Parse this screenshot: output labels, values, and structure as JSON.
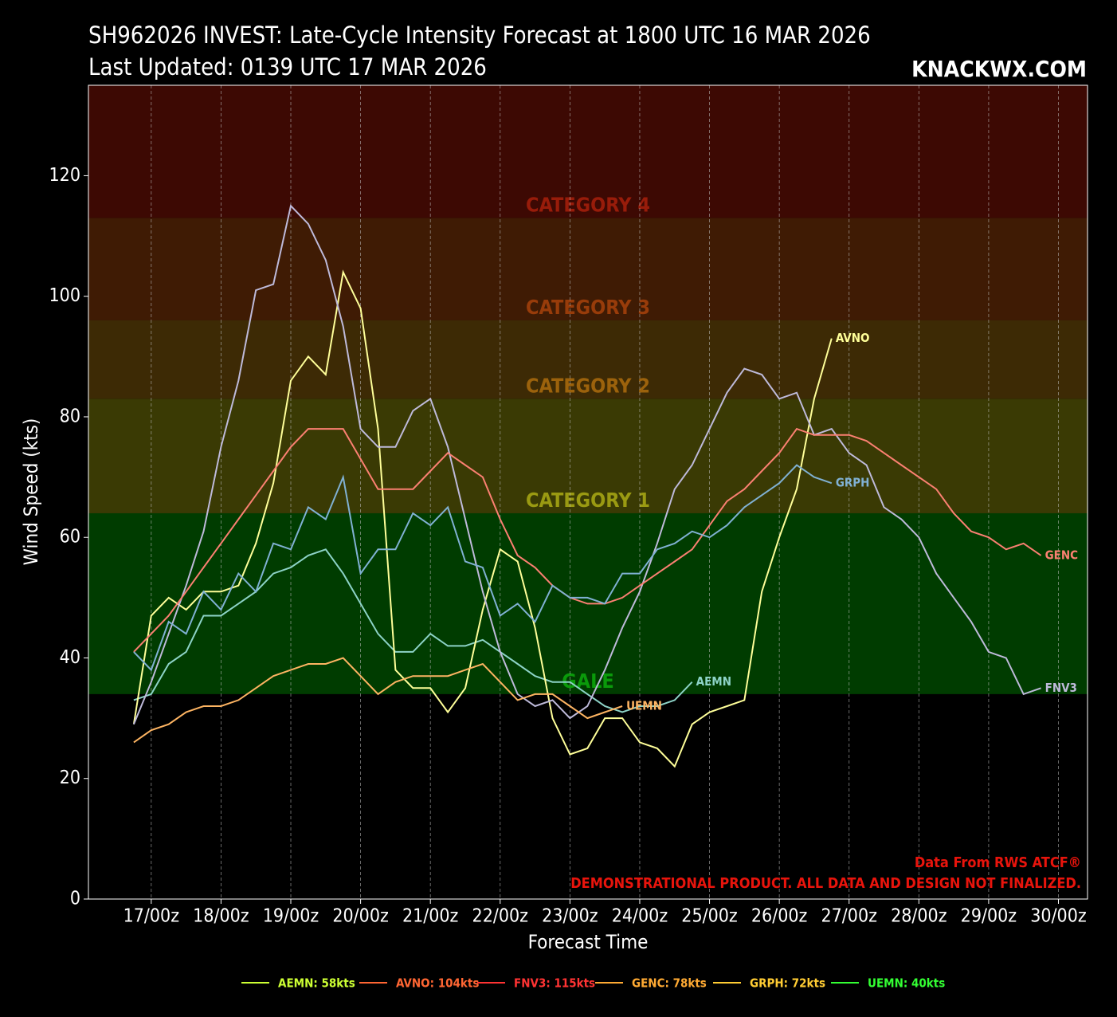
{
  "chart_data": {
    "type": "line",
    "title": "SH962026 INVEST: Late-Cycle Intensity Forecast at 1800 UTC 16 MAR 2026",
    "subtitle": "Last Updated: 0139 UTC 17 MAR 2026",
    "brand": "KNACKWX.COM",
    "xlabel": "Forecast Time",
    "ylabel": "Wind Speed (kts)",
    "notes": [
      "Data From RWS ATCF®",
      "DEMONSTRATIONAL PRODUCT. ALL DATA AND DESIGN NOT FINALIZED."
    ],
    "xlim": [
      -15.6,
      328
    ],
    "ylim": [
      0,
      135
    ],
    "yticks": [
      0,
      20,
      40,
      60,
      80,
      100,
      120
    ],
    "xticks": [
      {
        "value": 6,
        "label": "17/00z"
      },
      {
        "value": 30,
        "label": "18/00z"
      },
      {
        "value": 54,
        "label": "19/00z"
      },
      {
        "value": 78,
        "label": "20/00z"
      },
      {
        "value": 102,
        "label": "21/00z"
      },
      {
        "value": 126,
        "label": "22/00z"
      },
      {
        "value": 150,
        "label": "23/00z"
      },
      {
        "value": 174,
        "label": "24/00z"
      },
      {
        "value": 198,
        "label": "25/00z"
      },
      {
        "value": 222,
        "label": "26/00z"
      },
      {
        "value": 246,
        "label": "27/00z"
      },
      {
        "value": 270,
        "label": "28/00z"
      },
      {
        "value": 294,
        "label": "29/00z"
      },
      {
        "value": 318,
        "label": "30/00z"
      }
    ],
    "xgrid": true,
    "bands": [
      {
        "label": "GALE",
        "from": 34,
        "to": 64,
        "color": "#003c00",
        "label_color": "#0a9a0a"
      },
      {
        "label": "CATEGORY 1",
        "from": 64,
        "to": 83,
        "color": "#3a3a04",
        "label_color": "#9a9a12"
      },
      {
        "label": "CATEGORY 2",
        "from": 83,
        "to": 96,
        "color": "#3d2a05",
        "label_color": "#9c620c"
      },
      {
        "label": "CATEGORY 3",
        "from": 96,
        "to": 113,
        "color": "#3f1b04",
        "label_color": "#983c0a"
      },
      {
        "label": "CATEGORY 4",
        "from": 113,
        "to": 135,
        "color": "#3d0903",
        "label_color": "#981c0a"
      }
    ],
    "x": [
      0,
      6,
      12,
      18,
      24,
      30,
      36,
      42,
      48,
      54,
      60,
      66,
      72,
      78,
      84,
      90,
      96,
      102,
      108,
      114,
      120,
      126,
      132,
      138,
      144,
      150,
      156,
      162,
      168,
      174,
      180,
      186,
      192,
      198,
      204,
      210,
      216,
      222,
      228,
      234,
      240,
      246,
      252,
      258,
      264,
      270,
      276,
      282,
      288,
      294,
      300,
      306,
      312
    ],
    "series": [
      {
        "name": "AEMN",
        "color": "#8dd3c7",
        "legend_label": "AEMN: 58kts",
        "legend_color": "#ccff33",
        "values": [
          33,
          34,
          39,
          41,
          47,
          47,
          49,
          51,
          54,
          55,
          57,
          58,
          54,
          49,
          44,
          41,
          41,
          44,
          42,
          42,
          43,
          41,
          39,
          37,
          36,
          36,
          34,
          32,
          31,
          32,
          32,
          33,
          36,
          null,
          null,
          null,
          null,
          null,
          null,
          null,
          null,
          null,
          null,
          null,
          null,
          null,
          null,
          null,
          null,
          null,
          null,
          null,
          null
        ]
      },
      {
        "name": "AVNO",
        "color": "#ffff99",
        "legend_label": "AVNO: 104kts",
        "legend_color": "#ff6633",
        "values": [
          29,
          47,
          50,
          48,
          51,
          51,
          52,
          59,
          69,
          86,
          90,
          87,
          104,
          98,
          78,
          38,
          35,
          35,
          31,
          35,
          48,
          58,
          56,
          45,
          30,
          24,
          25,
          30,
          30,
          26,
          25,
          22,
          29,
          31,
          32,
          33,
          51,
          60,
          68,
          83,
          93,
          null,
          null,
          null,
          null,
          null,
          null,
          null,
          null,
          null,
          null,
          null,
          null
        ]
      },
      {
        "name": "FNV3",
        "color": "#bebada",
        "legend_label": "FNV3: 115kts",
        "legend_color": "#ff3333",
        "values": [
          29,
          36,
          44,
          52,
          61,
          75,
          86,
          101,
          102,
          115,
          112,
          106,
          95,
          78,
          75,
          75,
          81,
          83,
          75,
          63,
          51,
          41,
          34,
          32,
          33,
          30,
          32,
          38,
          45,
          51,
          59,
          68,
          72,
          78,
          84,
          88,
          87,
          83,
          84,
          77,
          78,
          74,
          72,
          65,
          63,
          60,
          54,
          50,
          46,
          41,
          40,
          34,
          35
        ]
      },
      {
        "name": "GENC",
        "color": "#fb8072",
        "legend_label": "GENC: 78kts",
        "legend_color": "#ffaa33",
        "values": [
          41,
          44,
          47,
          51,
          55,
          59,
          63,
          67,
          71,
          75,
          78,
          78,
          78,
          73,
          68,
          68,
          68,
          71,
          74,
          72,
          70,
          63,
          57,
          55,
          52,
          50,
          49,
          49,
          50,
          52,
          54,
          56,
          58,
          62,
          66,
          68,
          71,
          74,
          78,
          77,
          77,
          77,
          76,
          74,
          72,
          70,
          68,
          64,
          61,
          60,
          58,
          59,
          57
        ]
      },
      {
        "name": "GRPH",
        "color": "#80b1d3",
        "legend_label": "GRPH: 72kts",
        "legend_color": "#ffcc33",
        "values": [
          41,
          38,
          46,
          44,
          51,
          48,
          54,
          51,
          59,
          58,
          65,
          63,
          70,
          54,
          58,
          58,
          64,
          62,
          65,
          56,
          55,
          47,
          49,
          46,
          52,
          50,
          50,
          49,
          54,
          54,
          58,
          59,
          61,
          60,
          62,
          65,
          67,
          69,
          72,
          70,
          69,
          null,
          null,
          null,
          null,
          null,
          null,
          null,
          null,
          null,
          null,
          null,
          null
        ]
      },
      {
        "name": "UEMN",
        "color": "#fdb462",
        "legend_label": "UEMN: 40kts",
        "legend_color": "#33ff33",
        "values": [
          26,
          28,
          29,
          31,
          32,
          32,
          33,
          35,
          37,
          38,
          39,
          39,
          40,
          37,
          34,
          36,
          37,
          37,
          37,
          38,
          39,
          36,
          33,
          34,
          34,
          32,
          30,
          31,
          32,
          null,
          null,
          null,
          null,
          null,
          null,
          null,
          null,
          null,
          null,
          null,
          null,
          null,
          null,
          null,
          null,
          null,
          null,
          null,
          null,
          null,
          null,
          null,
          null
        ]
      }
    ]
  }
}
